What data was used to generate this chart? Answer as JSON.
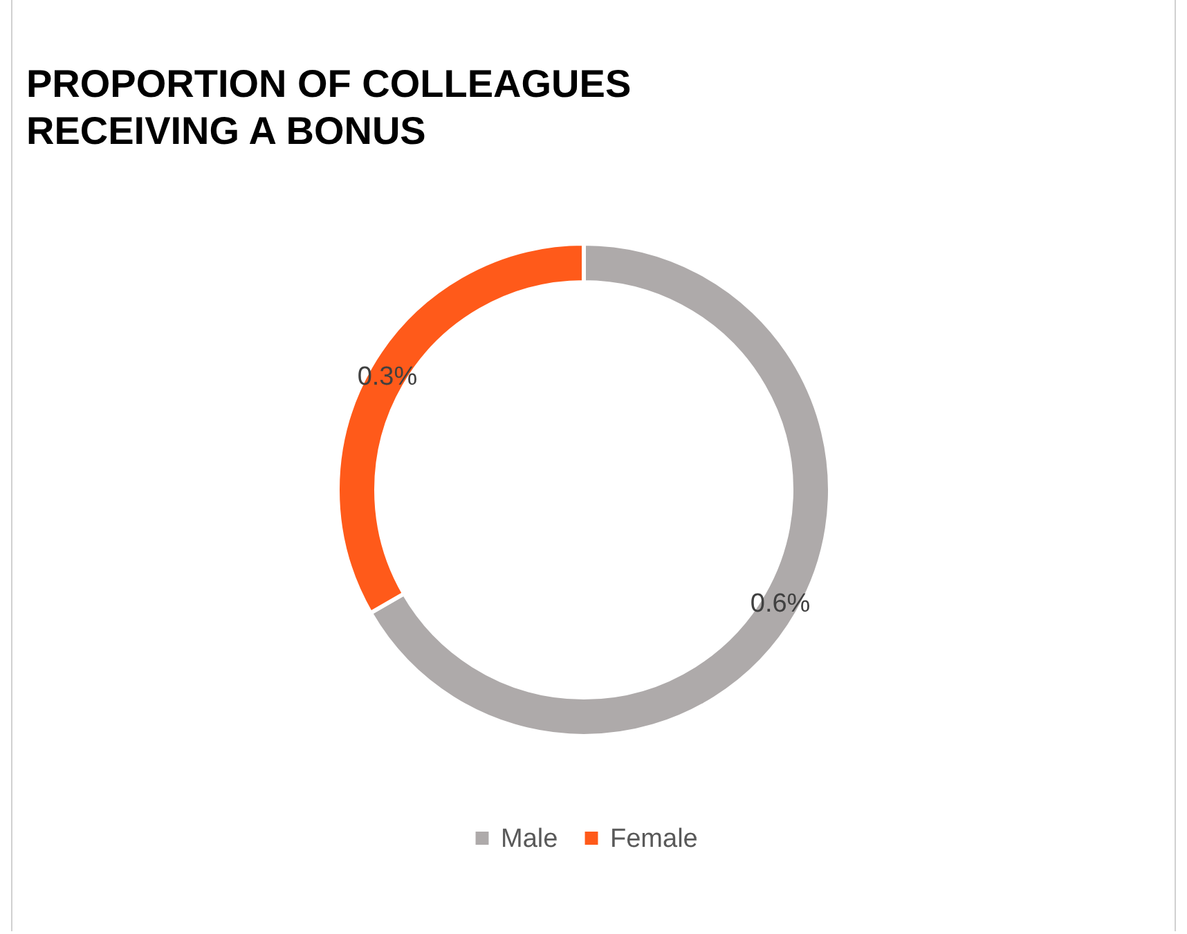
{
  "chart_data": {
    "type": "donut",
    "title": "PROPORTION OF COLLEAGUES RECEIVING A BONUS",
    "categories": [
      "Male",
      "Female"
    ],
    "values": [
      0.6,
      0.3
    ],
    "colors": [
      "#aeaaaa",
      "#ff5a1a"
    ],
    "value_labels": [
      "0.6%",
      "0.3%"
    ],
    "legend": "bottom"
  }
}
